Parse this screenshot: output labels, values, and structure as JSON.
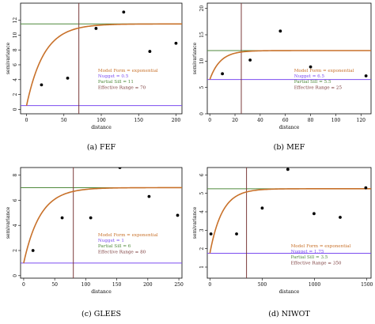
{
  "colors": {
    "curve": "#c8712a",
    "nugget": "#7b4cf0",
    "sill": "#4f8a3c",
    "range": "#7a3a3a",
    "ann_form": "#c8712a",
    "ann_nugget": "#7b4cf0",
    "ann_sill": "#4f8a3c",
    "ann_range": "#7a3a3a",
    "frame": "#000000"
  },
  "chart_data": [
    {
      "type": "scatter",
      "caption": "(a) FEF",
      "xlabel": "distance",
      "ylabel": "semivariance",
      "xlim": [
        -8,
        208
      ],
      "ylim": [
        -0.6,
        14.3
      ],
      "xticks": [
        0,
        50,
        100,
        150,
        200
      ],
      "yticks": [
        0,
        2,
        4,
        6,
        8,
        10,
        12
      ],
      "points": [
        {
          "x": 20,
          "y": 3.3
        },
        {
          "x": 55,
          "y": 4.2
        },
        {
          "x": 93,
          "y": 10.9
        },
        {
          "x": 130,
          "y": 13.1
        },
        {
          "x": 165,
          "y": 7.8
        },
        {
          "x": 200,
          "y": 8.9
        }
      ],
      "model": {
        "form": "exponential",
        "nugget": 0.5,
        "partial_sill": 11,
        "effective_range": 70
      },
      "annotations": [
        "Model Form = exponential",
        "Nugget = 0.5",
        "Partial Sill = 11",
        "Effective Range = 70"
      ]
    },
    {
      "type": "scatter",
      "caption": "(b) MEF",
      "xlabel": "distance",
      "ylabel": "semivariance",
      "xlim": [
        -2,
        128
      ],
      "ylim": [
        0,
        21
      ],
      "xticks": [
        0,
        20,
        40,
        60,
        80,
        100,
        120
      ],
      "yticks": [
        0,
        5,
        10,
        15,
        20
      ],
      "points": [
        {
          "x": 10,
          "y": 7.6
        },
        {
          "x": 32,
          "y": 10.2
        },
        {
          "x": 56,
          "y": 15.7
        },
        {
          "x": 80,
          "y": 8.9
        },
        {
          "x": 102,
          "y": 21.9
        },
        {
          "x": 124,
          "y": 7.2
        }
      ],
      "model": {
        "form": "exponential",
        "nugget": 6.5,
        "partial_sill": 5.5,
        "effective_range": 25
      },
      "annotations": [
        "Model Form = exponential",
        "Nugget = 6.5",
        "Partial Sill = 5.5",
        "Effective Range = 25"
      ]
    },
    {
      "type": "scatter",
      "caption": "(c) GLEES",
      "xlabel": "distance",
      "ylabel": "semivariance",
      "xlim": [
        -5,
        255
      ],
      "ylim": [
        -0.2,
        8.6
      ],
      "xticks": [
        0,
        50,
        100,
        150,
        200,
        250
      ],
      "yticks": [
        0,
        2,
        4,
        6,
        8
      ],
      "points": [
        {
          "x": 15,
          "y": 2.0
        },
        {
          "x": 62,
          "y": 4.6
        },
        {
          "x": 108,
          "y": 4.6
        },
        {
          "x": 155,
          "y": 8.6
        },
        {
          "x": 202,
          "y": 6.3
        },
        {
          "x": 248,
          "y": 4.8
        }
      ],
      "model": {
        "form": "exponential",
        "nugget": 1,
        "partial_sill": 6,
        "effective_range": 80
      },
      "annotations": [
        "Model Form = exponential",
        "Nugget = 1",
        "Partial Sill = 6",
        "Effective Range = 80"
      ]
    },
    {
      "type": "scatter",
      "caption": "(d) NIWOT",
      "xlabel": "distance",
      "ylabel": "semivariance",
      "xlim": [
        -25,
        1540
      ],
      "ylim": [
        0.4,
        6.4
      ],
      "xticks": [
        0,
        500,
        1000,
        1500
      ],
      "yticks": [
        1,
        2,
        3,
        4,
        5,
        6
      ],
      "points": [
        {
          "x": 10,
          "y": 2.8
        },
        {
          "x": 255,
          "y": 2.8
        },
        {
          "x": 500,
          "y": 4.2
        },
        {
          "x": 745,
          "y": 6.3
        },
        {
          "x": 995,
          "y": 3.9
        },
        {
          "x": 1245,
          "y": 3.7
        },
        {
          "x": 1490,
          "y": 5.3
        }
      ],
      "model": {
        "form": "exponential",
        "nugget": 1.75,
        "partial_sill": 3.5,
        "effective_range": 350
      },
      "annotations": [
        "Model Form = exponential",
        "Nugget = 1.75",
        "Partial Sill = 3.5",
        "Effective Range = 350"
      ]
    }
  ]
}
